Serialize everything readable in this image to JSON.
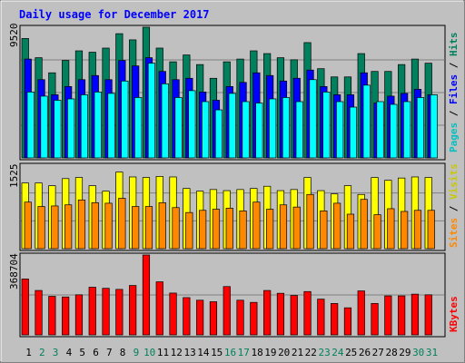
{
  "chart_data": [
    {
      "type": "bar",
      "title": "Daily usage for December 2017",
      "ylabel": "Pages / Files / Hits",
      "max_tick_label": "9520",
      "categories": [
        "1",
        "2",
        "3",
        "4",
        "5",
        "6",
        "7",
        "8",
        "9",
        "10",
        "11",
        "12",
        "13",
        "14",
        "15",
        "16",
        "17",
        "18",
        "19",
        "20",
        "21",
        "22",
        "23",
        "24",
        "25",
        "26",
        "27",
        "28",
        "29",
        "30",
        "31"
      ],
      "ylim": [
        0,
        9520
      ],
      "series": [
        {
          "name": "Hits",
          "color": "#00805c",
          "values": [
            8700,
            7300,
            6200,
            7100,
            7800,
            7700,
            8000,
            9050,
            8600,
            9520,
            8000,
            7000,
            7500,
            6800,
            5800,
            7000,
            7200,
            7800,
            7600,
            7300,
            7150,
            8400,
            6500,
            5900,
            5900,
            7600,
            6300,
            6300,
            6800,
            7200,
            6900
          ]
        },
        {
          "name": "Files",
          "color": "#0000ff",
          "values": [
            7200,
            5700,
            4600,
            5200,
            5700,
            6000,
            5700,
            7100,
            6700,
            7300,
            6300,
            5700,
            5800,
            4800,
            4200,
            5200,
            5500,
            6200,
            6000,
            5600,
            5800,
            6400,
            5200,
            4600,
            4600,
            6200,
            4000,
            4500,
            4700,
            5000,
            4600
          ]
        },
        {
          "name": "Pages",
          "color": "#00ffff",
          "values": [
            4800,
            4500,
            4200,
            4300,
            4600,
            4800,
            4700,
            5600,
            4400,
            6900,
            5400,
            4400,
            4900,
            4100,
            3500,
            4700,
            4100,
            4000,
            4300,
            4400,
            4100,
            5700,
            4800,
            4100,
            3700,
            5300,
            4100,
            3900,
            4100,
            4400,
            4600
          ]
        }
      ]
    },
    {
      "type": "bar",
      "ylabel": "Sites / Visits",
      "max_tick_label": "1525",
      "categories": [
        "1",
        "2",
        "3",
        "4",
        "5",
        "6",
        "7",
        "8",
        "9",
        "10",
        "11",
        "12",
        "13",
        "14",
        "15",
        "16",
        "17",
        "18",
        "19",
        "20",
        "21",
        "22",
        "23",
        "24",
        "25",
        "26",
        "27",
        "28",
        "29",
        "30",
        "31"
      ],
      "ylim": [
        0,
        1525
      ],
      "series": [
        {
          "name": "Visits",
          "color": "#ffff00",
          "values": [
            1200,
            1200,
            1150,
            1280,
            1300,
            1150,
            1050,
            1400,
            1310,
            1300,
            1320,
            1310,
            1100,
            1050,
            1080,
            1060,
            1080,
            1100,
            1140,
            1060,
            1080,
            1300,
            1060,
            1000,
            1150,
            990,
            1300,
            1250,
            1290,
            1310,
            1300
          ]
        },
        {
          "name": "Sites",
          "color": "#ff8800",
          "values": [
            850,
            770,
            780,
            800,
            890,
            840,
            830,
            920,
            770,
            770,
            840,
            750,
            660,
            700,
            720,
            740,
            690,
            850,
            720,
            800,
            760,
            990,
            690,
            830,
            630,
            900,
            620,
            730,
            680,
            700,
            700
          ]
        }
      ]
    },
    {
      "type": "bar",
      "ylabel": "KBytes",
      "max_tick_label": "368704",
      "categories": [
        "1",
        "2",
        "3",
        "4",
        "5",
        "6",
        "7",
        "8",
        "9",
        "10",
        "11",
        "12",
        "13",
        "14",
        "15",
        "16",
        "17",
        "18",
        "19",
        "20",
        "21",
        "22",
        "23",
        "24",
        "25",
        "26",
        "27",
        "28",
        "29",
        "30",
        "31"
      ],
      "ylim": [
        0,
        368704
      ],
      "series": [
        {
          "name": "KBytes",
          "color": "#ff0000",
          "values": [
            258000,
            205000,
            178000,
            175000,
            185000,
            220000,
            215000,
            210000,
            228000,
            368704,
            245000,
            193000,
            172000,
            160000,
            153000,
            223000,
            160000,
            150000,
            205000,
            192000,
            182000,
            200000,
            165000,
            145000,
            125000,
            203000,
            145000,
            180000,
            180000,
            188000,
            185000
          ]
        }
      ]
    }
  ],
  "weekend_days": [
    "2",
    "3",
    "9",
    "10",
    "16",
    "17",
    "23",
    "24",
    "30",
    "31"
  ],
  "colors": {
    "background": "#c0c0c0",
    "title": "#0000ff",
    "gridline": "#808080",
    "weekday_label": "#000000",
    "weekend_label": "#00805c"
  }
}
